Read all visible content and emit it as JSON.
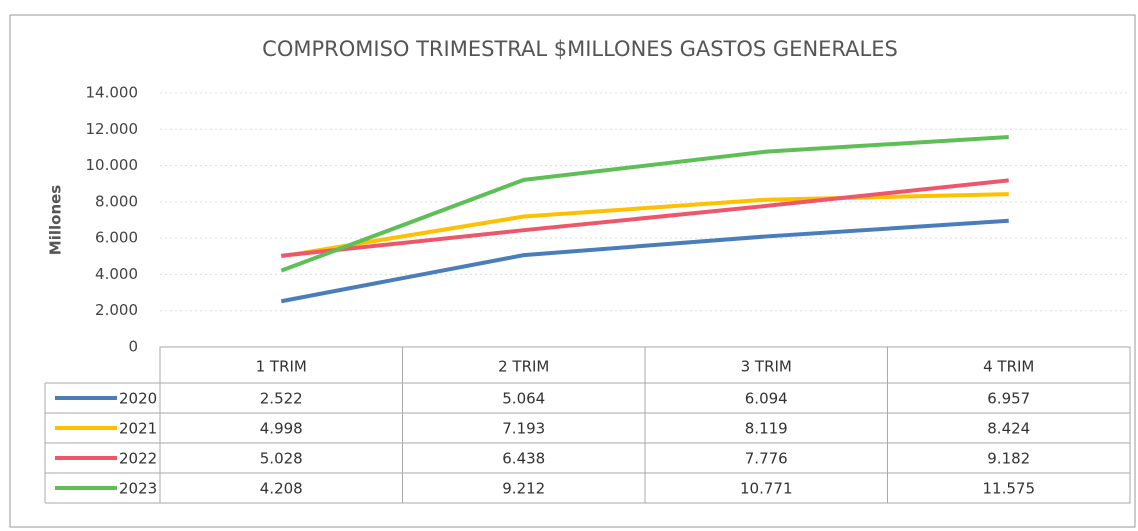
{
  "chart_data": {
    "type": "line",
    "title": "COMPROMISO TRIMESTRAL $MILLONES GASTOS GENERALES",
    "y_label": "Millones",
    "categories": [
      "1 TRIM",
      "2 TRIM",
      "3 TRIM",
      "4 TRIM"
    ],
    "series": [
      {
        "name": "2020",
        "color": "#4a7ebb",
        "values": [
          2522,
          5064,
          6094,
          6957
        ],
        "value_labels": [
          "2.522",
          "5.064",
          "6.094",
          "6.957"
        ]
      },
      {
        "name": "2021",
        "color": "#ffc000",
        "values": [
          4998,
          7193,
          8119,
          8424
        ],
        "value_labels": [
          "4.998",
          "7.193",
          "8.119",
          "8.424"
        ]
      },
      {
        "name": "2022",
        "color": "#f0566a",
        "values": [
          5028,
          6438,
          7776,
          9182
        ],
        "value_labels": [
          "5.028",
          "6.438",
          "7.776",
          "9.182"
        ]
      },
      {
        "name": "2023",
        "color": "#5dbf55",
        "values": [
          4208,
          9212,
          10771,
          11575
        ],
        "value_labels": [
          "4.208",
          "9.212",
          "10.771",
          "11.575"
        ]
      }
    ],
    "ylim": [
      0,
      14000
    ],
    "yticks": [
      0,
      {
        "value": 2000,
        "label": "2.000"
      },
      {
        "value": 4000,
        "label": "4.000"
      },
      {
        "value": 6000,
        "label": "6.000"
      },
      {
        "value": 8000,
        "label": "8.000"
      },
      {
        "value": 10000,
        "label": "10.000"
      },
      {
        "value": 12000,
        "label": "12.000"
      },
      {
        "value": 14000,
        "label": "14.000"
      }
    ],
    "grid": true
  }
}
